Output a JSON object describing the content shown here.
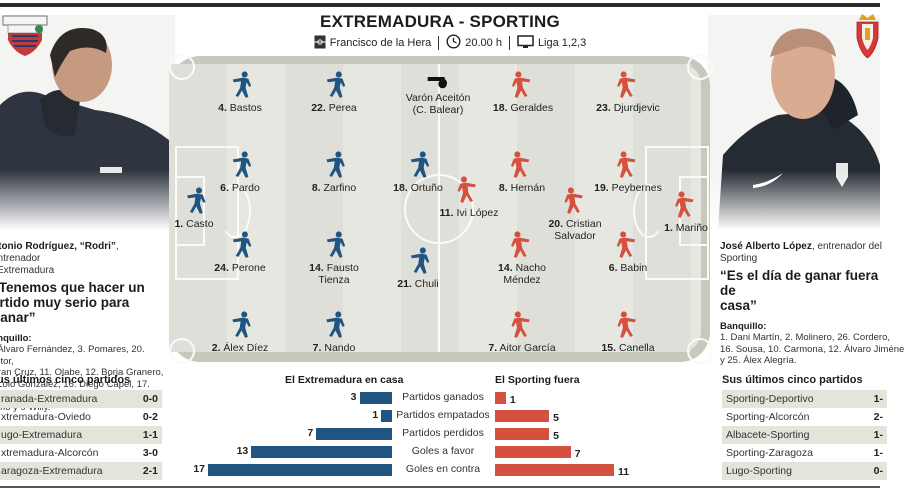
{
  "header": {
    "title": "EXTREMADURA - SPORTING",
    "stadium": "Francisco de la Hera",
    "time": "20.00 h",
    "tv": "Liga 1,2,3",
    "icons": [
      "stadium-icon",
      "clock-icon",
      "tv-icon"
    ]
  },
  "colors": {
    "home": "#1f5580",
    "away": "#d4503f",
    "pitch": "#e7e7e2",
    "pitch_border": "#c9c8bd"
  },
  "referee": {
    "name": "Varón Aceitón",
    "region": "(C. Balear)"
  },
  "home_team": {
    "players": [
      {
        "num": "1.",
        "name": "Casto"
      },
      {
        "num": "4.",
        "name": "Bastos"
      },
      {
        "num": "6.",
        "name": "Pardo"
      },
      {
        "num": "24.",
        "name": "Perone"
      },
      {
        "num": "2.",
        "name": "Álex Díez"
      },
      {
        "num": "22.",
        "name": "Perea"
      },
      {
        "num": "8.",
        "name": "Zarfino"
      },
      {
        "num": "14.",
        "name": "Fausto",
        "name2": "Tienza"
      },
      {
        "num": "7.",
        "name": "Nando"
      },
      {
        "num": "18.",
        "name": "Ortuño"
      },
      {
        "num": "21.",
        "name": "Chuli"
      }
    ],
    "coach_name": "ntonio Rodríguez, “Rodri”",
    "coach_role": ", entrenador",
    "coach_role2": "l Extremadura",
    "quote_line1": "“Tenemos que hacer un",
    "quote_line2": "artido muy serio para ganar”",
    "bench_label": "anquillo:",
    "bench_lines": [
      ". Álvaro Fernández, 3. Pomares, 20. Aitor,",
      "Fran Cruz, 11. Olabe, 12. Borja Granero,",
      ". Lolo González, 16. Diego Capel, 17. Javi",
      "amo y 9 Willy."
    ],
    "results_title": "us últimos cinco partidos",
    "results": [
      {
        "match": "ranada-Extremadura",
        "score": "0-0"
      },
      {
        "match": "xtremadura-Oviedo",
        "score": "0-2"
      },
      {
        "match": "ugo-Extremadura",
        "score": "1-1"
      },
      {
        "match": "xtremadura-Alcorcón",
        "score": "3-0"
      },
      {
        "match": "aragoza-Extremadura",
        "score": "2-1"
      }
    ]
  },
  "away_team": {
    "players": [
      {
        "num": "11.",
        "name": "Ivi López"
      },
      {
        "num": "18.",
        "name": "Geraldes"
      },
      {
        "num": "23.",
        "name": "Djurdjevic"
      },
      {
        "num": "8.",
        "name": "Hernán"
      },
      {
        "num": "19.",
        "name": "Peybernes"
      },
      {
        "num": "20.",
        "name": "Cristian",
        "name2": "Salvador"
      },
      {
        "num": "1.",
        "name": "Mariño"
      },
      {
        "num": "14.",
        "name": "Nacho",
        "name2": "Méndez"
      },
      {
        "num": "6.",
        "name": "Babin"
      },
      {
        "num": "7.",
        "name": "Aitor García"
      },
      {
        "num": "15.",
        "name": "Canella"
      }
    ],
    "coach_name": "José Alberto López",
    "coach_role": ", entrenador del",
    "coach_role2": "Sporting",
    "quote_line1": "“Es el día de ganar fuera de",
    "quote_line2": "casa”",
    "bench_label": "Banquillo:",
    "bench_lines": [
      "1. Dani Martín, 2. Molinero, 26. Cordero,",
      "16. Sousa, 10. Carmona, 12. Álvaro Jiméne",
      "y 25. Álex Alegría."
    ],
    "results_title": "Sus últimos cinco partidos",
    "results": [
      {
        "match": "Sporting-Deportivo",
        "score": "1-"
      },
      {
        "match": "Sporting-Alcorcón",
        "score": "2-"
      },
      {
        "match": "Albacete-Sporting",
        "score": "1-"
      },
      {
        "match": "Sporting-Zaragoza",
        "score": "1-"
      },
      {
        "match": "Lugo-Sporting",
        "score": "0-"
      }
    ]
  },
  "chart_data": {
    "type": "bar",
    "title_home": "El Extremadura en casa",
    "title_away": "El Sporting fuera",
    "categories": [
      "Partidos ganados",
      "Partidos empatados",
      "Partidos perdidos",
      "Goles a favor",
      "Goles en contra"
    ],
    "series": [
      {
        "name": "El Extremadura en casa",
        "values": [
          3,
          1,
          7,
          13,
          17
        ],
        "color": "#1f5580"
      },
      {
        "name": "El Sporting fuera",
        "values": [
          1,
          5,
          5,
          7,
          11
        ],
        "color": "#d4503f"
      }
    ],
    "xlim": [
      0,
      17
    ]
  }
}
